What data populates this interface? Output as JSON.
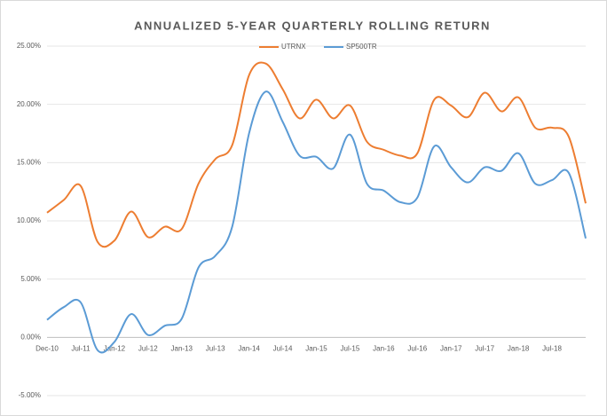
{
  "chart_data": {
    "type": "line",
    "title": "ANNUALIZED 5-YEAR QUARTERLY ROLLING RETURN",
    "categories": [
      "Dec-10",
      null,
      "Jul-11",
      null,
      "Jan-12",
      null,
      "Jul-12",
      null,
      "Jan-13",
      null,
      "Jul-13",
      null,
      "Jan-14",
      null,
      "Jul-14",
      null,
      "Jan-15",
      null,
      "Jul-15",
      null,
      "Jan-16",
      null,
      "Jul-16",
      null,
      "Jan-17",
      null,
      "Jul-17",
      null,
      "Jan-18",
      null,
      "Jul-18",
      null,
      null
    ],
    "series": [
      {
        "name": "UTRNX",
        "color": "#ed7d31",
        "values": [
          10.7,
          11.8,
          13.0,
          8.2,
          8.3,
          10.8,
          8.6,
          9.5,
          9.3,
          13.2,
          15.3,
          16.5,
          22.5,
          23.5,
          21.3,
          18.8,
          20.4,
          18.8,
          19.9,
          16.8,
          16.1,
          15.6,
          15.8,
          20.4,
          19.9,
          18.9,
          21.0,
          19.4,
          20.6,
          18.0,
          18.0,
          17.2,
          11.5
        ]
      },
      {
        "name": "SP500TR",
        "color": "#5b9bd5",
        "values": [
          1.5,
          2.6,
          3.0,
          -1.1,
          -0.4,
          2.0,
          0.2,
          1.0,
          1.6,
          6.0,
          7.0,
          9.5,
          17.5,
          21.1,
          18.5,
          15.6,
          15.5,
          14.5,
          17.4,
          13.2,
          12.6,
          11.6,
          12.0,
          16.4,
          14.6,
          13.3,
          14.6,
          14.3,
          15.8,
          13.2,
          13.5,
          14.1,
          8.5
        ]
      }
    ],
    "ylim": [
      -5,
      25
    ],
    "yticks": [
      {
        "value": -5,
        "label": "-5.00%"
      },
      {
        "value": 0,
        "label": "0.00%"
      },
      {
        "value": 5,
        "label": "5.00%"
      },
      {
        "value": 10,
        "label": "10.00%"
      },
      {
        "value": 15,
        "label": "15.00%"
      },
      {
        "value": 20,
        "label": "20.00%"
      },
      {
        "value": 25,
        "label": "25.00%"
      }
    ],
    "grid": true,
    "legend": "top"
  }
}
